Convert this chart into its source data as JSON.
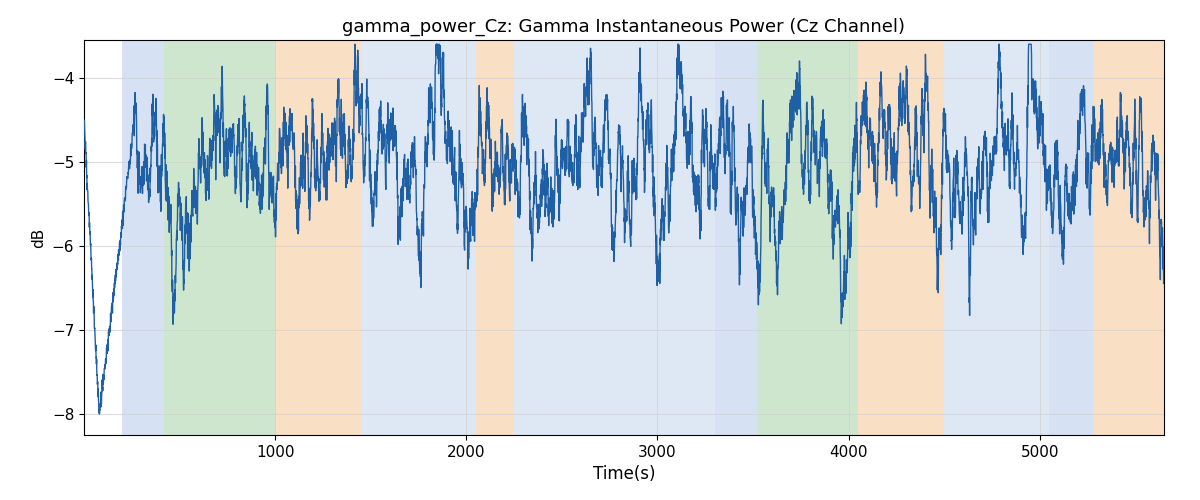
{
  "title": "gamma_power_Cz: Gamma Instantaneous Power (Cz Channel)",
  "xlabel": "Time(s)",
  "ylabel": "dB",
  "xlim": [
    0,
    5650
  ],
  "ylim": [
    -8.25,
    -3.55
  ],
  "yticks": [
    -8,
    -7,
    -6,
    -5,
    -4
  ],
  "xticks": [
    1000,
    2000,
    3000,
    4000,
    5000
  ],
  "line_color": "#1f5fa6",
  "line_width": 1.0,
  "background_color": "#ffffff",
  "bands": [
    {
      "start": 200,
      "end": 420,
      "color": "#aec6e8",
      "alpha": 0.5
    },
    {
      "start": 420,
      "end": 1000,
      "color": "#90c990",
      "alpha": 0.45
    },
    {
      "start": 1000,
      "end": 1450,
      "color": "#f5c08a",
      "alpha": 0.5
    },
    {
      "start": 1450,
      "end": 2050,
      "color": "#aec6e8",
      "alpha": 0.4
    },
    {
      "start": 2050,
      "end": 2250,
      "color": "#f5c08a",
      "alpha": 0.5
    },
    {
      "start": 2250,
      "end": 3300,
      "color": "#aec6e8",
      "alpha": 0.4
    },
    {
      "start": 3300,
      "end": 3520,
      "color": "#aec6e8",
      "alpha": 0.5
    },
    {
      "start": 3520,
      "end": 4050,
      "color": "#90c990",
      "alpha": 0.45
    },
    {
      "start": 4050,
      "end": 4500,
      "color": "#f5c08a",
      "alpha": 0.5
    },
    {
      "start": 4500,
      "end": 5050,
      "color": "#aec6e8",
      "alpha": 0.4
    },
    {
      "start": 5050,
      "end": 5280,
      "color": "#aec6e8",
      "alpha": 0.5
    },
    {
      "start": 5280,
      "end": 5650,
      "color": "#f5c08a",
      "alpha": 0.5
    }
  ],
  "figsize": [
    12.0,
    5.0
  ],
  "dpi": 100
}
